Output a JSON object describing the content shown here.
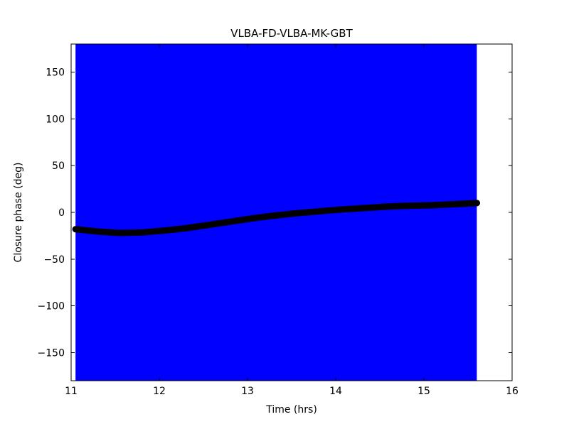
{
  "figure": {
    "background_color": "#ffffff",
    "plot_background_color": "#ffffff",
    "frame_color": "#000000"
  },
  "chart_data": {
    "type": "scatter",
    "title": "VLBA-FD-VLBA-MK-GBT",
    "xlabel": "Time (hrs)",
    "ylabel": "Closure phase (deg)",
    "xlim": [
      11,
      16
    ],
    "ylim": [
      -180,
      180
    ],
    "xticks": [
      11,
      12,
      13,
      14,
      15,
      16
    ],
    "yticks": [
      -150,
      -100,
      -50,
      0,
      50,
      100,
      150
    ],
    "grid": false,
    "legend": "none",
    "marker": "circle",
    "marker_color": "#000000",
    "marker_size_px": 9,
    "error_band": {
      "x_start": 11.05,
      "x_end": 15.6,
      "y_min": -180,
      "y_max": 180,
      "color": "#0000ff"
    },
    "series": [
      {
        "name": "closure-phase",
        "color": "#000000",
        "x": [
          11.05,
          11.3,
          11.55,
          11.8,
          12.05,
          12.3,
          12.55,
          12.8,
          13.05,
          13.3,
          13.55,
          13.8,
          14.05,
          14.3,
          14.55,
          14.8,
          15.05,
          15.3,
          15.6
        ],
        "y": [
          -18,
          -20.5,
          -22,
          -21.5,
          -19.5,
          -17,
          -13.5,
          -10,
          -6.5,
          -3.5,
          -1,
          1,
          3,
          4.5,
          6,
          7,
          7.5,
          8.5,
          10
        ]
      }
    ]
  }
}
